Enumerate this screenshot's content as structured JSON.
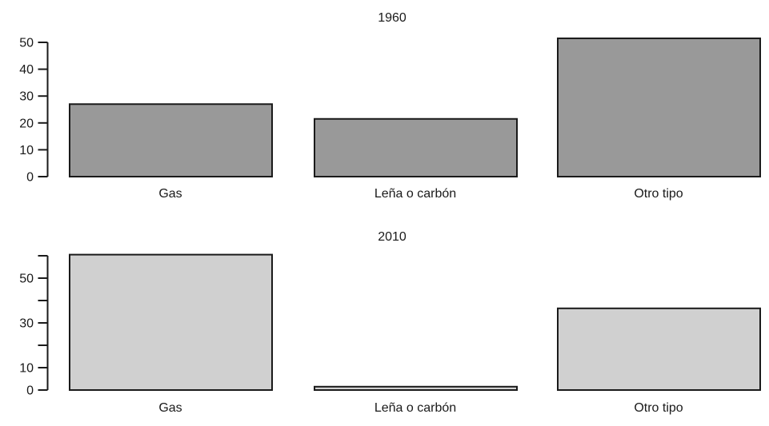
{
  "page": {
    "background_color": "#ffffff",
    "text_color": "#1a1a1a"
  },
  "chart_data": [
    {
      "type": "bar",
      "title": "1960",
      "categories": [
        "Gas",
        "Leña o carbón",
        "Otro tipo"
      ],
      "values": [
        27,
        21.5,
        51.5
      ],
      "xlabel": "",
      "ylabel": "",
      "ylim": [
        0,
        50
      ],
      "ytick_step": 10,
      "ytick_labels": [
        0,
        10,
        20,
        30,
        40,
        50
      ],
      "bar_color": "#999999",
      "bar_border_color": "#1a1a1a",
      "axis_color": "#1a1a1a",
      "grid": false,
      "legend": false
    },
    {
      "type": "bar",
      "title": "2010",
      "categories": [
        "Gas",
        "Leña o carbón",
        "Otro tipo"
      ],
      "values": [
        60.5,
        1.5,
        36.5
      ],
      "xlabel": "",
      "ylabel": "",
      "ylim": [
        0,
        60
      ],
      "ytick_step": 10,
      "ytick_labels": [
        0,
        10,
        30,
        50
      ],
      "bar_color": "#d0d0d0",
      "bar_border_color": "#1a1a1a",
      "axis_color": "#1a1a1a",
      "grid": false,
      "legend": false
    }
  ]
}
